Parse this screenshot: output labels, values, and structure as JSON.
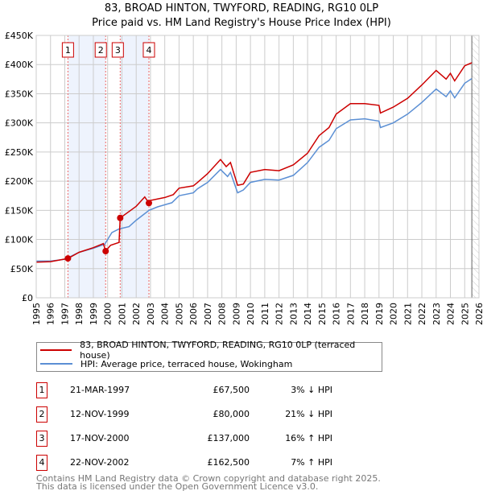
{
  "title": "83, BROAD HINTON, TWYFORD, READING, RG10 0LP",
  "subtitle": "Price paid vs. HM Land Registry's House Price Index (HPI)",
  "colors": {
    "property": "#cc0000",
    "hpi": "#5b8fd4",
    "shade": "#eef3fd"
  },
  "chart_data": {
    "type": "line",
    "title": "83, BROAD HINTON, TWYFORD, READING, RG10 0LP",
    "xlim": [
      1995,
      2026
    ],
    "ylim": [
      0,
      450000
    ],
    "xticks": [
      "1995",
      "1996",
      "1997",
      "1998",
      "1999",
      "2000",
      "2001",
      "2002",
      "2003",
      "2004",
      "2005",
      "2006",
      "2007",
      "2008",
      "2009",
      "2010",
      "2011",
      "2012",
      "2013",
      "2014",
      "2015",
      "2016",
      "2017",
      "2018",
      "2019",
      "2020",
      "2021",
      "2022",
      "2023",
      "2024",
      "2025",
      "2026"
    ],
    "yticks": [
      {
        "v": 0,
        "l": "£0"
      },
      {
        "v": 50000,
        "l": "£50K"
      },
      {
        "v": 100000,
        "l": "£100K"
      },
      {
        "v": 150000,
        "l": "£150K"
      },
      {
        "v": 200000,
        "l": "£200K"
      },
      {
        "v": 250000,
        "l": "£250K"
      },
      {
        "v": 300000,
        "l": "£300K"
      },
      {
        "v": 350000,
        "l": "£350K"
      },
      {
        "v": 400000,
        "l": "£400K"
      },
      {
        "v": 450000,
        "l": "£450K"
      }
    ],
    "grid": true,
    "series": [
      {
        "name": "83, BROAD HINTON, TWYFORD, READING, RG10 0LP (terraced house)",
        "color": "#cc0000",
        "x": [
          1995,
          1996,
          1997.22,
          1998,
          1999,
          1999.7,
          1999.86,
          2000.2,
          2000.8,
          2000.88,
          2001.5,
          2002,
          2002.6,
          2002.89,
          2003,
          2004,
          2004.6,
          2005,
          2006,
          2006.3,
          2007,
          2007.9,
          2008.3,
          2008.6,
          2009.1,
          2009.5,
          2010,
          2011,
          2012,
          2013,
          2014,
          2014.8,
          2015.5,
          2016,
          2017,
          2018,
          2019,
          2019.1,
          2020,
          2021,
          2022,
          2023,
          2023.7,
          2024,
          2024.3,
          2025,
          2025.5
        ],
        "y": [
          61000,
          62000,
          67500,
          78000,
          86000,
          93000,
          80000,
          90000,
          95000,
          137000,
          148000,
          157000,
          173000,
          162500,
          167000,
          172000,
          177000,
          188000,
          192000,
          198000,
          213000,
          237000,
          225000,
          232000,
          193000,
          195000,
          215000,
          220000,
          218000,
          228000,
          248000,
          278000,
          292000,
          315000,
          333000,
          333000,
          330000,
          317000,
          327000,
          342000,
          365000,
          390000,
          375000,
          385000,
          372000,
          398000,
          403000
        ]
      },
      {
        "name": "HPI: Average price, terraced house, Wokingham",
        "color": "#5b8fd4",
        "x": [
          1995,
          1996,
          1997,
          1997.5,
          1998,
          1999,
          1999.8,
          2000.3,
          2000.8,
          2001.5,
          2002,
          2002.9,
          2003.5,
          2004.5,
          2005,
          2006,
          2006.3,
          2007,
          2007.9,
          2008.4,
          2008.6,
          2009.1,
          2009.5,
          2010,
          2011,
          2012,
          2013,
          2014,
          2014.8,
          2015.5,
          2016,
          2017,
          2018,
          2019,
          2019.1,
          2020,
          2021,
          2022,
          2023,
          2023.7,
          2024,
          2024.3,
          2025,
          2025.5
        ],
        "y": [
          63000,
          63000,
          66000,
          72000,
          78000,
          85000,
          92000,
          112000,
          118000,
          122000,
          133000,
          150000,
          156000,
          163000,
          175000,
          180000,
          187000,
          198000,
          220000,
          208000,
          215000,
          180000,
          185000,
          198000,
          203000,
          202000,
          210000,
          232000,
          258000,
          270000,
          290000,
          305000,
          307000,
          303000,
          292000,
          300000,
          315000,
          335000,
          358000,
          345000,
          355000,
          343000,
          368000,
          376000
        ]
      }
    ],
    "sales": [
      {
        "id": "1",
        "x": 1997.22,
        "price": 67500,
        "date": "21-MAR-1997",
        "price_label": "£67,500",
        "hpi": "3% ↓ HPI"
      },
      {
        "id": "2",
        "x": 1999.86,
        "price": 80000,
        "date": "12-NOV-1999",
        "price_label": "£80,000",
        "hpi": "21% ↓ HPI"
      },
      {
        "id": "3",
        "x": 2000.88,
        "price": 137000,
        "date": "17-NOV-2000",
        "price_label": "£137,000",
        "hpi": "16% ↑ HPI"
      },
      {
        "id": "4",
        "x": 2002.89,
        "price": 162500,
        "date": "22-NOV-2002",
        "price_label": "£162,500",
        "hpi": "7% ↑ HPI"
      }
    ],
    "shaded": [
      [
        1997.22,
        1999.86
      ],
      [
        2000.88,
        2002.89
      ]
    ],
    "forecast_from": 2025.5,
    "legend": "below"
  },
  "legend": {
    "property": "83, BROAD HINTON, TWYFORD, READING, RG10 0LP (terraced house)",
    "hpi": "HPI: Average price, terraced house, Wokingham"
  },
  "footer": {
    "line1": "Contains HM Land Registry data © Crown copyright and database right 2025.",
    "line2": "This data is licensed under the Open Government Licence v3.0."
  }
}
